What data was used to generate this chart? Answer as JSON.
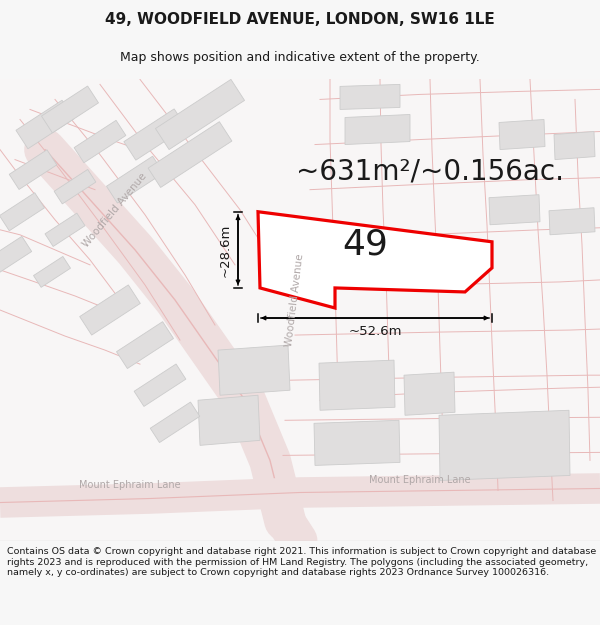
{
  "title": "49, WOODFIELD AVENUE, LONDON, SW16 1LE",
  "subtitle": "Map shows position and indicative extent of the property.",
  "area_text": "~631m²/~0.156ac.",
  "label_49": "49",
  "dim_width": "~52.6m",
  "dim_height": "~28.6m",
  "footer": "Contains OS data © Crown copyright and database right 2021. This information is subject to Crown copyright and database rights 2023 and is reproduced with the permission of HM Land Registry. The polygons (including the associated geometry, namely x, y co-ordinates) are subject to Crown copyright and database rights 2023 Ordnance Survey 100026316.",
  "bg_color": "#f7f7f7",
  "map_bg": "#f8f6f6",
  "road_line_color": "#e8b8b8",
  "road_fill_color": "#eedede",
  "building_color": "#e0dede",
  "building_edge": "#cccccc",
  "plot_color": "#ee0000",
  "street_label_color": "#b0a8a8",
  "title_fontsize": 11,
  "subtitle_fontsize": 9,
  "area_fontsize": 20,
  "label_fontsize": 26,
  "dim_fontsize": 9.5,
  "footer_fontsize": 6.8
}
